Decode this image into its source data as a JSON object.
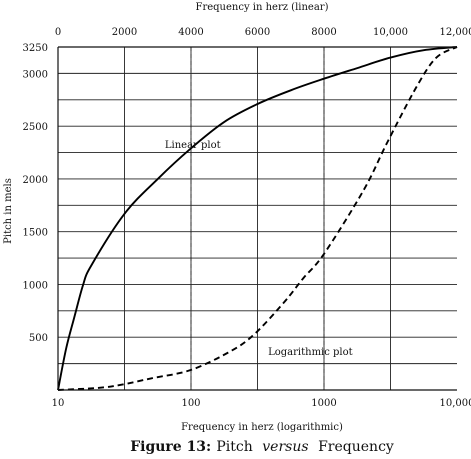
{
  "chart_data": {
    "type": "line",
    "caption": {
      "number": "Figure 13:",
      "part1": "Pitch ",
      "italic": "versus",
      "part2": " Frequency"
    },
    "top_axis": {
      "label": "Frequency in herz (linear)",
      "scale": "linear",
      "range": [
        0,
        12000
      ],
      "ticks": [
        0,
        2000,
        4000,
        6000,
        8000,
        10000,
        12000
      ],
      "tick_labels": [
        "0",
        "2000",
        "4000",
        "6000",
        "8000",
        "10,000",
        "12,000"
      ]
    },
    "bottom_axis": {
      "label": "Frequency in herz (logarithmic)",
      "scale": "log",
      "range": [
        10,
        10000
      ],
      "ticks": [
        10,
        100,
        1000,
        10000
      ],
      "tick_labels": [
        "10",
        "100",
        "1000",
        "10,000"
      ]
    },
    "y_axis": {
      "label": "Pitch in mels",
      "range": [
        0,
        3250
      ],
      "ticks": [
        500,
        1000,
        1500,
        2000,
        2500,
        3000,
        3250
      ],
      "tick_labels": [
        "500",
        "1000",
        "1500",
        "2000",
        "2500",
        "3000",
        "3250"
      ]
    },
    "grid": true,
    "series": [
      {
        "name": "Linear plot",
        "axis": "top",
        "style": "solid",
        "points": [
          [
            0,
            0
          ],
          [
            250,
            400
          ],
          [
            500,
            700
          ],
          [
            750,
            990
          ],
          [
            1000,
            1180
          ],
          [
            2000,
            1670
          ],
          [
            3000,
            2000
          ],
          [
            4000,
            2290
          ],
          [
            5000,
            2540
          ],
          [
            6000,
            2710
          ],
          [
            7000,
            2840
          ],
          [
            8000,
            2950
          ],
          [
            9000,
            3050
          ],
          [
            10000,
            3150
          ],
          [
            11000,
            3220
          ],
          [
            12000,
            3250
          ]
        ]
      },
      {
        "name": "Logarithmic plot",
        "axis": "bottom",
        "style": "dashed",
        "points": [
          [
            10,
            0
          ],
          [
            20,
            20
          ],
          [
            30,
            50
          ],
          [
            50,
            110
          ],
          [
            100,
            190
          ],
          [
            200,
            370
          ],
          [
            300,
            530
          ],
          [
            500,
            830
          ],
          [
            700,
            1060
          ],
          [
            1000,
            1290
          ],
          [
            2000,
            1900
          ],
          [
            3000,
            2350
          ],
          [
            5000,
            2880
          ],
          [
            7000,
            3150
          ],
          [
            10000,
            3250
          ]
        ]
      }
    ],
    "annotations": [
      {
        "text": "Linear plot",
        "x": 5200,
        "y": 2330,
        "axis": "top"
      },
      {
        "text": "Logarithmic plot",
        "x": 380,
        "y": 370,
        "axis": "bottom"
      }
    ]
  }
}
